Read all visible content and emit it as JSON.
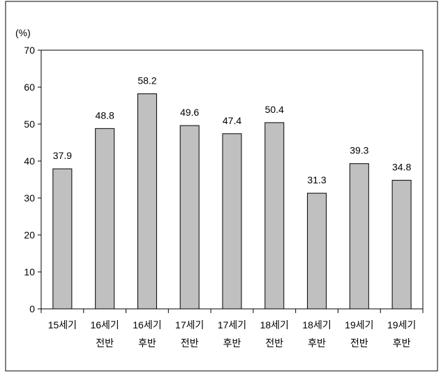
{
  "chart_data": {
    "type": "bar",
    "ylabel": "(%)",
    "categories": [
      "15세기",
      "16세기 전반",
      "16세기 후반",
      "17세기 전반",
      "17세기 후반",
      "18세기 전반",
      "18세기 후반",
      "19세기 전반",
      "19세기 후반"
    ],
    "values": [
      37.9,
      48.8,
      58.2,
      49.6,
      47.4,
      50.4,
      31.3,
      39.3,
      34.8
    ],
    "ylim": [
      0,
      70
    ],
    "yticks": [
      0,
      10,
      20,
      30,
      40,
      50,
      60,
      70
    ],
    "show_data_labels": true,
    "grid": false,
    "colors": {
      "bar_fill": "#c0c0c0",
      "bar_stroke": "#000000"
    }
  }
}
